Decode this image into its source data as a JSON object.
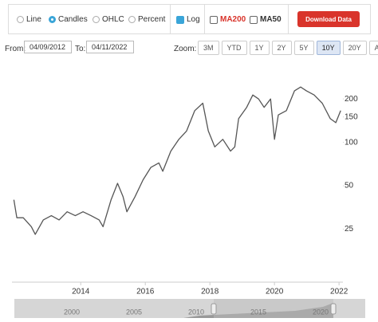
{
  "controls": {
    "chart_types": [
      "Line",
      "Candles",
      "OHLC",
      "Percent"
    ],
    "log": "Log",
    "ma200": "MA200",
    "ma50": "MA50",
    "download": "Download Data"
  },
  "range": {
    "from_label": "From:",
    "from": "04/09/2012",
    "to_label": "To:",
    "to": "04/11/2022",
    "zoom_label": "Zoom:",
    "zoom": [
      "3M",
      "YTD",
      "1Y",
      "2Y",
      "5Y",
      "10Y",
      "20Y",
      "All"
    ]
  },
  "chart_data": {
    "type": "line",
    "log_scale": true,
    "grid": false,
    "color": "#555555",
    "x": [
      2011.93,
      2012.02,
      2012.22,
      2012.47,
      2012.59,
      2012.84,
      2013.09,
      2013.33,
      2013.58,
      2013.83,
      2014.07,
      2014.32,
      2014.57,
      2014.69,
      2014.94,
      2015.14,
      2015.31,
      2015.43,
      2015.68,
      2015.93,
      2016.17,
      2016.42,
      2016.54,
      2016.79,
      2017.04,
      2017.28,
      2017.53,
      2017.78,
      2017.95,
      2018.15,
      2018.4,
      2018.64,
      2018.77,
      2018.89,
      2019.14,
      2019.33,
      2019.51,
      2019.68,
      2019.88,
      2020.0,
      2020.12,
      2020.37,
      2020.62,
      2020.81,
      2020.99,
      2021.23,
      2021.48,
      2021.73,
      2021.9,
      2022.05
    ],
    "values": [
      40,
      30,
      30,
      26,
      23,
      29,
      31,
      29,
      33,
      31,
      33,
      31,
      29,
      26,
      40,
      52,
      42,
      33,
      42,
      55,
      67,
      72,
      63,
      87,
      105,
      120,
      166,
      187,
      120,
      93,
      105,
      87,
      93,
      146,
      175,
      213,
      200,
      175,
      200,
      105,
      155,
      166,
      228,
      242,
      228,
      213,
      187,
      146,
      137,
      166
    ],
    "xlim": [
      2011.87,
      2022.12
    ],
    "xticks": [
      2014,
      2016,
      2018,
      2020,
      2022
    ],
    "ylim": [
      11,
      290
    ],
    "yticks": [
      25,
      50,
      100,
      150,
      200
    ]
  },
  "navigator": {
    "labels": [
      "2000",
      "2005",
      "2010",
      "2015",
      "2020"
    ]
  }
}
